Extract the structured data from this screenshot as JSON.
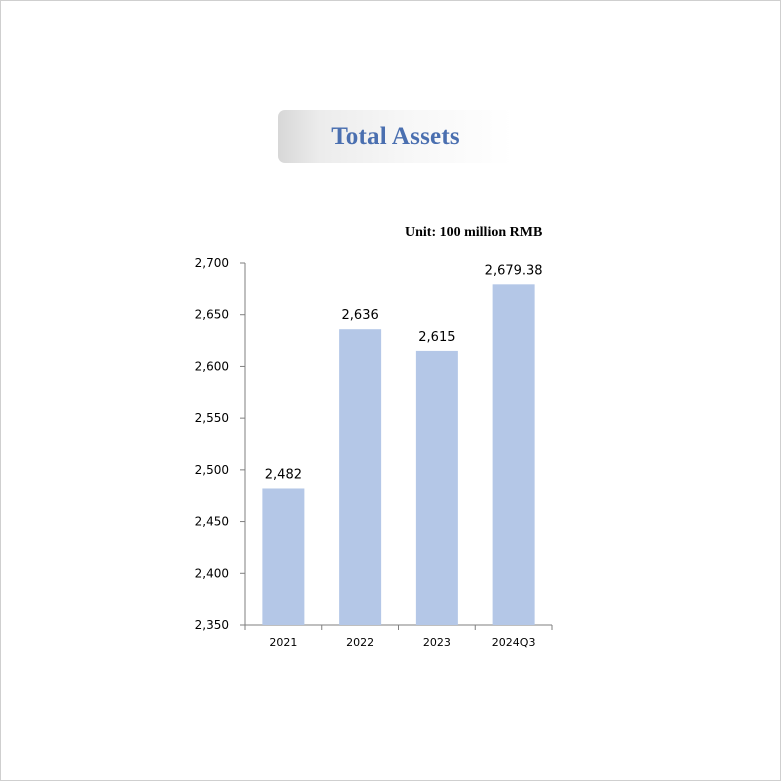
{
  "title": "Total Assets",
  "unit_label": "Unit: 100 million RMB",
  "colors": {
    "bar": "#b4c7e7",
    "title": "#4a6fb0",
    "axis": "#7f7f7f"
  },
  "chart_data": {
    "type": "bar",
    "title": "Total Assets",
    "categories": [
      "2021",
      "2022",
      "2023",
      "2024Q3"
    ],
    "values": [
      2482,
      2636,
      2615,
      2679.38
    ],
    "data_labels": [
      "2,482",
      "2,636",
      "2,615",
      "2,679.38"
    ],
    "ylim": [
      2350,
      2700
    ],
    "yticks": [
      2350,
      2400,
      2450,
      2500,
      2550,
      2600,
      2650,
      2700
    ],
    "ytick_labels": [
      "2,350",
      "2,400",
      "2,450",
      "2,500",
      "2,550",
      "2,600",
      "2,650",
      "2,700"
    ],
    "xlabel": "",
    "ylabel": "",
    "grid": false,
    "legend": "none"
  }
}
